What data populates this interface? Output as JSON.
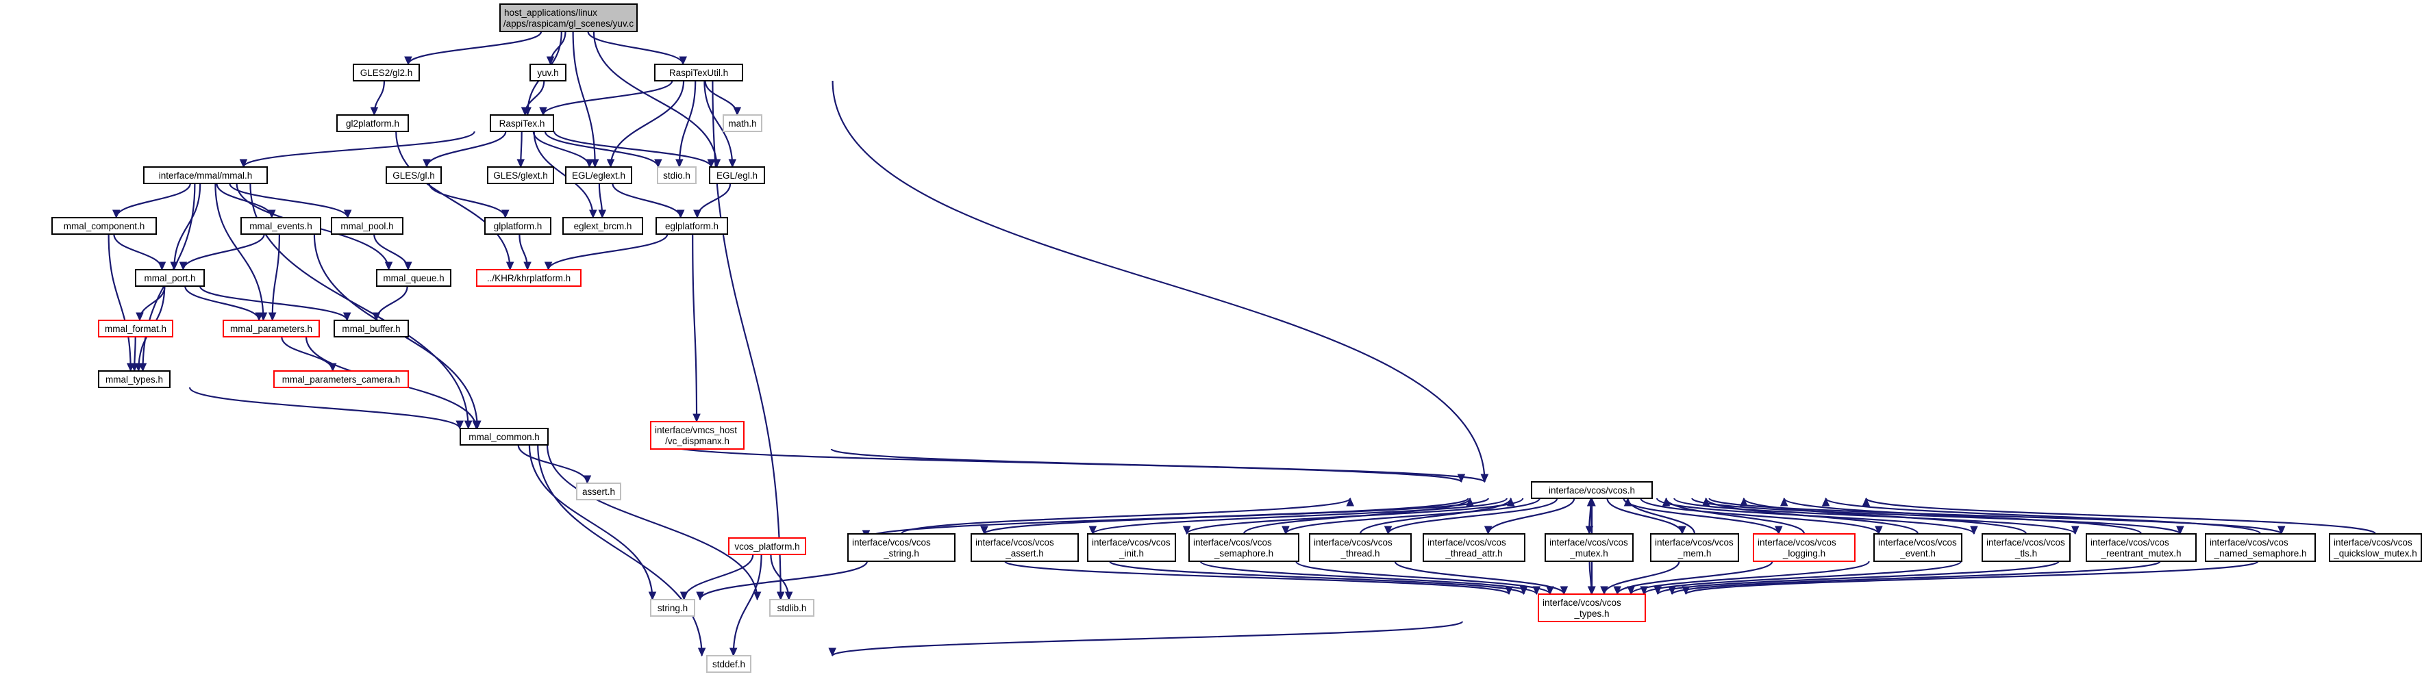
{
  "diagram": {
    "type": "include-dependency-graph",
    "colors": {
      "root_fill": "#bfbfbf",
      "edge": "#191970",
      "normal_border": "#000000",
      "truncated_border": "#ff0000",
      "missing_border": "#bfbfbf",
      "text": "#000000"
    },
    "nodes": [
      {
        "id": "yuv_c",
        "lines": [
          "host_applications/linux",
          "/apps/raspicam/gl_scenes/yuv.c"
        ],
        "kind": "root"
      },
      {
        "id": "gles2_gl2",
        "lines": [
          "GLES2/gl2.h"
        ],
        "kind": "normal"
      },
      {
        "id": "yuv_h",
        "lines": [
          "yuv.h"
        ],
        "kind": "normal"
      },
      {
        "id": "raspitexutil",
        "lines": [
          "RaspiTexUtil.h"
        ],
        "kind": "normal"
      },
      {
        "id": "gl2platform",
        "lines": [
          "gl2platform.h"
        ],
        "kind": "normal"
      },
      {
        "id": "raspitex",
        "lines": [
          "RaspiTex.h"
        ],
        "kind": "normal"
      },
      {
        "id": "math_h",
        "lines": [
          "math.h"
        ],
        "kind": "missing"
      },
      {
        "id": "mmal_h",
        "lines": [
          "interface/mmal/mmal.h"
        ],
        "kind": "normal"
      },
      {
        "id": "gles_gl",
        "lines": [
          "GLES/gl.h"
        ],
        "kind": "normal"
      },
      {
        "id": "gles_glext",
        "lines": [
          "GLES/glext.h"
        ],
        "kind": "normal"
      },
      {
        "id": "egl_eglext",
        "lines": [
          "EGL/eglext.h"
        ],
        "kind": "normal"
      },
      {
        "id": "stdio_h",
        "lines": [
          "stdio.h"
        ],
        "kind": "missing"
      },
      {
        "id": "egl_egl",
        "lines": [
          "EGL/egl.h"
        ],
        "kind": "normal"
      },
      {
        "id": "mmal_component",
        "lines": [
          "mmal_component.h"
        ],
        "kind": "normal"
      },
      {
        "id": "mmal_events",
        "lines": [
          "mmal_events.h"
        ],
        "kind": "normal"
      },
      {
        "id": "mmal_pool",
        "lines": [
          "mmal_pool.h"
        ],
        "kind": "normal"
      },
      {
        "id": "glplatform",
        "lines": [
          "glplatform.h"
        ],
        "kind": "normal"
      },
      {
        "id": "eglext_brcm",
        "lines": [
          "eglext_brcm.h"
        ],
        "kind": "normal"
      },
      {
        "id": "eglplatform",
        "lines": [
          "eglplatform.h"
        ],
        "kind": "normal"
      },
      {
        "id": "mmal_port",
        "lines": [
          "mmal_port.h"
        ],
        "kind": "normal"
      },
      {
        "id": "mmal_queue",
        "lines": [
          "mmal_queue.h"
        ],
        "kind": "normal"
      },
      {
        "id": "khrplatform",
        "lines": [
          "../KHR/khrplatform.h"
        ],
        "kind": "truncated"
      },
      {
        "id": "mmal_format",
        "lines": [
          "mmal_format.h"
        ],
        "kind": "truncated"
      },
      {
        "id": "mmal_parameters",
        "lines": [
          "mmal_parameters.h"
        ],
        "kind": "truncated"
      },
      {
        "id": "mmal_buffer",
        "lines": [
          "mmal_buffer.h"
        ],
        "kind": "normal"
      },
      {
        "id": "mmal_types",
        "lines": [
          "mmal_types.h"
        ],
        "kind": "normal"
      },
      {
        "id": "mmal_parameters_camera",
        "lines": [
          "mmal_parameters_camera.h"
        ],
        "kind": "truncated"
      },
      {
        "id": "vc_dispmanx",
        "lines": [
          "interface/vmcs_host",
          "/vc_dispmanx.h"
        ],
        "kind": "truncated"
      },
      {
        "id": "mmal_common",
        "lines": [
          "mmal_common.h"
        ],
        "kind": "normal"
      },
      {
        "id": "assert_h",
        "lines": [
          "assert.h"
        ],
        "kind": "missing"
      },
      {
        "id": "vcos_h",
        "lines": [
          "interface/vcos/vcos.h"
        ],
        "kind": "normal"
      },
      {
        "id": "vcos_platform",
        "lines": [
          "vcos_platform.h"
        ],
        "kind": "truncated"
      },
      {
        "id": "vcos_string",
        "lines": [
          "interface/vcos/vcos",
          "_string.h"
        ],
        "kind": "normal"
      },
      {
        "id": "vcos_assert",
        "lines": [
          "interface/vcos/vcos",
          "_assert.h"
        ],
        "kind": "normal"
      },
      {
        "id": "vcos_init",
        "lines": [
          "interface/vcos/vcos",
          "_init.h"
        ],
        "kind": "normal"
      },
      {
        "id": "vcos_semaphore",
        "lines": [
          "interface/vcos/vcos",
          "_semaphore.h"
        ],
        "kind": "normal"
      },
      {
        "id": "vcos_thread",
        "lines": [
          "interface/vcos/vcos",
          "_thread.h"
        ],
        "kind": "normal"
      },
      {
        "id": "vcos_thread_attr",
        "lines": [
          "interface/vcos/vcos",
          "_thread_attr.h"
        ],
        "kind": "normal"
      },
      {
        "id": "vcos_mutex",
        "lines": [
          "interface/vcos/vcos",
          "_mutex.h"
        ],
        "kind": "normal"
      },
      {
        "id": "vcos_mem",
        "lines": [
          "interface/vcos/vcos",
          "_mem.h"
        ],
        "kind": "normal"
      },
      {
        "id": "vcos_logging",
        "lines": [
          "interface/vcos/vcos",
          "_logging.h"
        ],
        "kind": "truncated"
      },
      {
        "id": "vcos_event",
        "lines": [
          "interface/vcos/vcos",
          "_event.h"
        ],
        "kind": "normal"
      },
      {
        "id": "vcos_tls",
        "lines": [
          "interface/vcos/vcos",
          "_tls.h"
        ],
        "kind": "normal"
      },
      {
        "id": "vcos_reentrant_mutex",
        "lines": [
          "interface/vcos/vcos",
          "_reentrant_mutex.h"
        ],
        "kind": "normal"
      },
      {
        "id": "vcos_named_semaphore",
        "lines": [
          "interface/vcos/vcos",
          "_named_semaphore.h"
        ],
        "kind": "normal"
      },
      {
        "id": "vcos_quickslow_mutex",
        "lines": [
          "interface/vcos/vcos",
          "_quickslow_mutex.h"
        ],
        "kind": "normal"
      },
      {
        "id": "string_h",
        "lines": [
          "string.h"
        ],
        "kind": "missing"
      },
      {
        "id": "stdlib_h",
        "lines": [
          "stdlib.h"
        ],
        "kind": "missing"
      },
      {
        "id": "vcos_types",
        "lines": [
          "interface/vcos/vcos",
          "_types.h"
        ],
        "kind": "truncated"
      },
      {
        "id": "stddef_h",
        "lines": [
          "stddef.h"
        ],
        "kind": "missing"
      }
    ],
    "edges": [
      [
        "yuv_c",
        "gles2_gl2"
      ],
      [
        "yuv_c",
        "yuv_h"
      ],
      [
        "yuv_c",
        "raspitexutil"
      ],
      [
        "yuv_c",
        "raspitex"
      ],
      [
        "yuv_c",
        "egl_eglext"
      ],
      [
        "yuv_c",
        "egl_egl"
      ],
      [
        "gles2_gl2",
        "gl2platform"
      ],
      [
        "gl2platform",
        "khrplatform"
      ],
      [
        "yuv_h",
        "raspitex"
      ],
      [
        "raspitexutil",
        "raspitex"
      ],
      [
        "raspitexutil",
        "math_h"
      ],
      [
        "raspitexutil",
        "egl_eglext"
      ],
      [
        "raspitexutil",
        "stdio_h"
      ],
      [
        "raspitexutil",
        "egl_egl"
      ],
      [
        "raspitexutil",
        "stdlib_h"
      ],
      [
        "raspitexutil",
        "vcos_h"
      ],
      [
        "raspitex",
        "mmal_h"
      ],
      [
        "raspitex",
        "gles_gl"
      ],
      [
        "raspitex",
        "gles_glext"
      ],
      [
        "raspitex",
        "egl_eglext"
      ],
      [
        "raspitex",
        "stdio_h"
      ],
      [
        "raspitex",
        "egl_egl"
      ],
      [
        "raspitex",
        "eglext_brcm"
      ],
      [
        "mmal_h",
        "mmal_component"
      ],
      [
        "mmal_h",
        "mmal_events"
      ],
      [
        "mmal_h",
        "mmal_pool"
      ],
      [
        "mmal_h",
        "mmal_port"
      ],
      [
        "mmal_h",
        "mmal_parameters"
      ],
      [
        "mmal_h",
        "mmal_types"
      ],
      [
        "mmal_h",
        "mmal_common"
      ],
      [
        "mmal_h",
        "mmal_queue"
      ],
      [
        "gles_gl",
        "glplatform"
      ],
      [
        "glplatform",
        "khrplatform"
      ],
      [
        "egl_eglext",
        "eglext_brcm"
      ],
      [
        "egl_eglext",
        "eglplatform"
      ],
      [
        "egl_egl",
        "eglplatform"
      ],
      [
        "eglplatform",
        "khrplatform"
      ],
      [
        "eglplatform",
        "vc_dispmanx"
      ],
      [
        "mmal_component",
        "mmal_port"
      ],
      [
        "mmal_component",
        "mmal_types"
      ],
      [
        "mmal_events",
        "mmal_port"
      ],
      [
        "mmal_events",
        "mmal_parameters"
      ],
      [
        "mmal_events",
        "mmal_common"
      ],
      [
        "mmal_pool",
        "mmal_queue"
      ],
      [
        "mmal_queue",
        "mmal_buffer"
      ],
      [
        "mmal_port",
        "mmal_format"
      ],
      [
        "mmal_port",
        "mmal_parameters"
      ],
      [
        "mmal_port",
        "mmal_buffer"
      ],
      [
        "mmal_port",
        "mmal_types"
      ],
      [
        "mmal_format",
        "mmal_types"
      ],
      [
        "mmal_parameters",
        "mmal_parameters_camera"
      ],
      [
        "mmal_parameters",
        "mmal_common"
      ],
      [
        "mmal_types",
        "mmal_common"
      ],
      [
        "mmal_common",
        "assert_h"
      ],
      [
        "mmal_common",
        "string_h"
      ],
      [
        "mmal_common",
        "stdlib_h"
      ],
      [
        "mmal_common",
        "stddef_h"
      ],
      [
        "mmal_common",
        "vcos_h"
      ],
      [
        "vc_dispmanx",
        "vcos_h"
      ],
      [
        "vcos_h",
        "vcos_platform"
      ],
      [
        "vcos_h",
        "vcos_string"
      ],
      [
        "vcos_h",
        "vcos_assert"
      ],
      [
        "vcos_h",
        "vcos_init"
      ],
      [
        "vcos_h",
        "vcos_semaphore"
      ],
      [
        "vcos_h",
        "vcos_thread"
      ],
      [
        "vcos_h",
        "vcos_thread_attr"
      ],
      [
        "vcos_h",
        "vcos_mutex"
      ],
      [
        "vcos_h",
        "vcos_mem"
      ],
      [
        "vcos_h",
        "vcos_logging"
      ],
      [
        "vcos_h",
        "vcos_event"
      ],
      [
        "vcos_h",
        "vcos_tls"
      ],
      [
        "vcos_h",
        "vcos_reentrant_mutex"
      ],
      [
        "vcos_h",
        "vcos_named_semaphore"
      ],
      [
        "vcos_h",
        "vcos_quickslow_mutex"
      ],
      [
        "vcos_h",
        "vcos_types"
      ],
      [
        "vcos_platform",
        "string_h"
      ],
      [
        "vcos_platform",
        "stdlib_h"
      ],
      [
        "vcos_platform",
        "stddef_h"
      ],
      [
        "vcos_string",
        "string_h"
      ],
      [
        "vcos_string",
        "vcos_types"
      ],
      [
        "vcos_assert",
        "vcos_types"
      ],
      [
        "vcos_init",
        "vcos_types"
      ],
      [
        "vcos_semaphore",
        "vcos_types"
      ],
      [
        "vcos_thread",
        "vcos_types"
      ],
      [
        "vcos_mutex",
        "vcos_types"
      ],
      [
        "vcos_mem",
        "vcos_types"
      ],
      [
        "vcos_logging",
        "vcos_types"
      ],
      [
        "vcos_event",
        "vcos_types"
      ],
      [
        "vcos_tls",
        "vcos_types"
      ],
      [
        "vcos_reentrant_mutex",
        "vcos_types"
      ],
      [
        "vcos_named_semaphore",
        "vcos_types"
      ],
      [
        "vcos_quickslow_mutex",
        "vcos_types"
      ],
      [
        "vcos_types",
        "stddef_h"
      ],
      [
        "vcos_mutex",
        "vcos_h"
      ],
      [
        "vcos_mem",
        "vcos_h"
      ],
      [
        "vcos_logging",
        "vcos_h"
      ],
      [
        "vcos_event",
        "vcos_h"
      ],
      [
        "vcos_tls",
        "vcos_h"
      ],
      [
        "vcos_reentrant_mutex",
        "vcos_h"
      ],
      [
        "vcos_named_semaphore",
        "vcos_h"
      ],
      [
        "vcos_quickslow_mutex",
        "vcos_h"
      ],
      [
        "vcos_semaphore",
        "vcos_h"
      ],
      [
        "vcos_thread",
        "vcos_h"
      ],
      [
        "vcos_string",
        "vcos_h"
      ],
      [
        "vcos_types",
        "vcos_h"
      ]
    ]
  }
}
